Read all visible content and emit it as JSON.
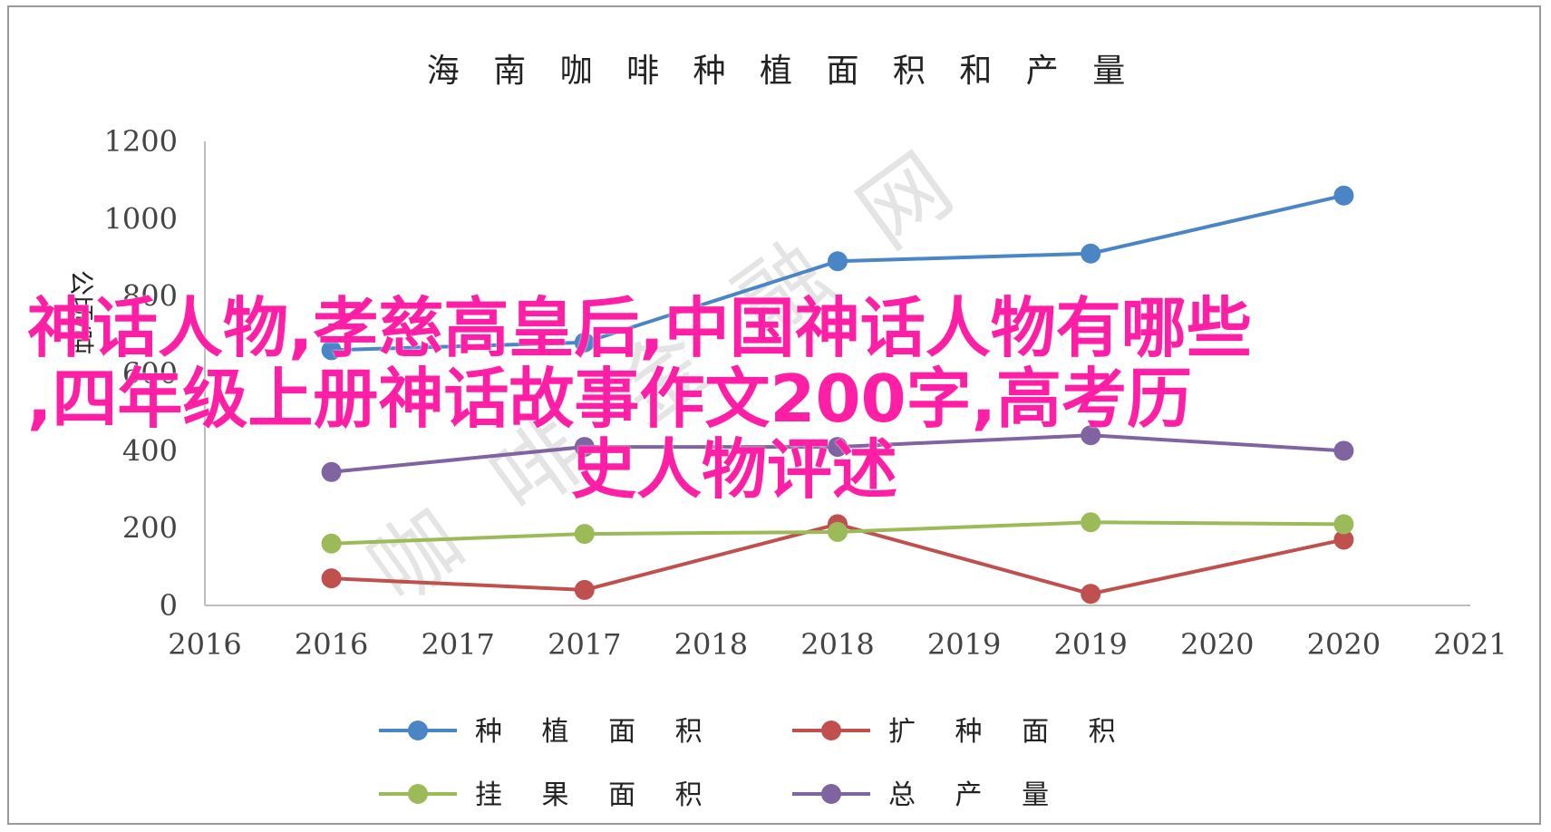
{
  "chart_data": {
    "type": "line",
    "title": "海 南 咖 啡 种 植 面 积 和 产 量",
    "ylabel": "公顷/吨",
    "ylim": [
      0,
      1200
    ],
    "yticks": [
      "0",
      "200",
      "400",
      "600",
      "800",
      "1000",
      "1200"
    ],
    "xticks": [
      "2016",
      "2016",
      "2017",
      "2017",
      "2018",
      "2018",
      "2019",
      "2019",
      "2020",
      "2020",
      "2021"
    ],
    "x_positions": [
      1,
      3,
      5,
      7,
      9
    ],
    "grid": false,
    "legend_position": "bottom",
    "series": [
      {
        "name": "种 植 面 积",
        "color": "#4a86c6",
        "values": [
          660,
          680,
          890,
          910,
          1060
        ]
      },
      {
        "name": "扩 种 面 积",
        "color": "#c0504d",
        "values": [
          70,
          40,
          210,
          30,
          170
        ]
      },
      {
        "name": "挂 果 面 积",
        "color": "#9bbb59",
        "values": [
          160,
          185,
          190,
          215,
          210
        ]
      },
      {
        "name": "总 产 量",
        "color": "#8064a2",
        "values": [
          345,
          410,
          410,
          440,
          400
        ]
      }
    ]
  },
  "watermark": "咖 啡 金 融 网",
  "overlay": {
    "line1": "神话人物,孝慈高皇后,中国神话人物有哪些",
    "line2": ",四年级上册神话故事作文200字,高考历",
    "line3": "史人物评述"
  }
}
